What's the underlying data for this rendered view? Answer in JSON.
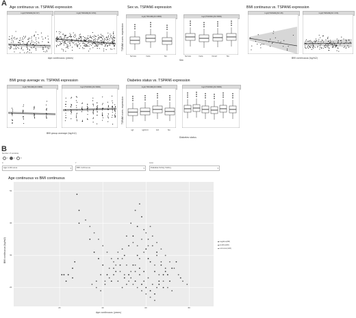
{
  "panelA": {
    "letter": "A",
    "sections": [
      {
        "id": "age",
        "title": "Age continuous vs. TSPAN6 expression",
        "xlabel": "Age continuous (years)",
        "ylabel": "TSPAN6 norm. expression",
        "strips": [
          "log2(TSPAN6)(N=97)",
          "log2(TSPAN6)(N=456)"
        ]
      },
      {
        "id": "sex",
        "title": "Sex vs. TSPAN6 expression",
        "xlabel": "Sex",
        "ylabel": "TSPAN6 norm. expression",
        "strips": [
          "log2(TSPAN6)(N=NNN)",
          "log2(TSPAN6)(N=NNN)"
        ],
        "categories": [
          "female",
          "male",
          "NA"
        ],
        "categories2": [
          "female",
          "male",
          "mixed",
          "NA"
        ]
      },
      {
        "id": "bmi",
        "title": "BMI continuous vs. TSPAN6 expression",
        "xlabel": "BMI continuous (kg/m2)",
        "ylabel": "",
        "strips": [
          "log2(TSPAN6)(N=28)",
          "log2(TSPAN6)(N=136)"
        ]
      },
      {
        "id": "bmig",
        "title": "BMI group average vs. TSPAN6 expression",
        "xlabel": "BMI group average (kg/m2)",
        "ylabel": "",
        "strips": [
          "log2(TSPAN6)(N=NNN)",
          "log2(TSPAN6)(N=NNN)"
        ]
      },
      {
        "id": "diab",
        "title": "Diabetes status vs. TSPAN6 expression",
        "xlabel": "Diabetes status",
        "ylabel": "TSPAN6 norm. expression",
        "strips": [
          "log2(TSPAN6)(N=NNN)",
          "log2(TSPAN6)(N=NNN)"
        ],
        "categories": [
          "ngt",
          "ngt/t2d",
          "t2d",
          "NA"
        ],
        "categories2": [
          "ngt",
          "ngt/t2d",
          "igt",
          "igt or t2d",
          "t2d",
          "NA"
        ]
      }
    ]
  },
  "panelB": {
    "letter": "B",
    "radio_label": "Number of variables",
    "radio_options": [
      "1",
      "2",
      "3"
    ],
    "controls": [
      {
        "label": "X",
        "value": "Age continuous"
      },
      {
        "label": "Y",
        "value": "BMI continuous"
      },
      {
        "label": "Color",
        "value": "Diabetes family history"
      }
    ],
    "plot_title": "Age continuous vs BMI continuous",
    "xlabel": "Age continuous (years)",
    "ylabel": "BMI continuous (kg/m2)",
    "legend": [
      "negative(88)",
      "positive(46)",
      "unknown(128)"
    ]
  },
  "chart_data": [
    {
      "type": "scatter",
      "title": "Age continuous vs BMI continuous",
      "xlabel": "Age continuous (years)",
      "ylabel": "BMI continuous (kg/m2)",
      "xlim": [
        0,
        90
      ],
      "ylim": [
        15,
        52
      ],
      "xticks": [
        20,
        40,
        60,
        80
      ],
      "yticks": [
        20,
        30,
        40,
        50
      ],
      "grid": true,
      "legend_position": "right",
      "series": [
        {
          "name": "negative(88)",
          "points": [
            [
              28,
              49
            ],
            [
              29,
              44
            ],
            [
              29,
              40
            ],
            [
              27,
              28
            ],
            [
              26,
              26
            ],
            [
              24,
              24
            ],
            [
              22,
              24
            ],
            [
              21,
              24
            ],
            [
              26,
              23
            ],
            [
              23,
              22
            ],
            [
              34,
              35
            ],
            [
              36,
              31
            ],
            [
              38,
              29
            ],
            [
              40,
              27
            ],
            [
              42,
              24
            ],
            [
              44,
              22
            ],
            [
              46,
              25
            ],
            [
              48,
              27
            ],
            [
              50,
              30
            ],
            [
              52,
              33
            ],
            [
              54,
              36
            ],
            [
              56,
              39
            ],
            [
              58,
              42
            ],
            [
              60,
              32
            ],
            [
              62,
              28
            ],
            [
              64,
              25
            ],
            [
              66,
              22
            ],
            [
              68,
              20
            ],
            [
              70,
              24
            ],
            [
              72,
              26
            ],
            [
              74,
              28
            ],
            [
              76,
              23
            ],
            [
              50,
              23
            ],
            [
              55,
              22
            ],
            [
              58,
              21
            ],
            [
              60,
              20
            ],
            [
              62,
              19
            ],
            [
              64,
              18
            ],
            [
              66,
              21
            ],
            [
              68,
              24
            ],
            [
              54,
              27
            ],
            [
              56,
              30
            ],
            [
              52,
              24
            ],
            [
              57,
              26
            ],
            [
              61,
              29
            ],
            [
              65,
              31
            ],
            [
              67,
              27
            ],
            [
              69,
              25
            ],
            [
              71,
              22
            ],
            [
              59,
              25
            ]
          ]
        },
        {
          "name": "positive(46)",
          "points": [
            [
              45,
              26
            ],
            [
              47,
              29
            ],
            [
              49,
              32
            ],
            [
              51,
              36
            ],
            [
              53,
              40
            ],
            [
              55,
              44
            ],
            [
              57,
              46
            ],
            [
              59,
              38
            ],
            [
              61,
              35
            ],
            [
              63,
              33
            ],
            [
              65,
              30
            ],
            [
              67,
              28
            ],
            [
              69,
              26
            ],
            [
              57,
              24
            ],
            [
              59,
              22
            ],
            [
              61,
              23
            ],
            [
              63,
              21
            ],
            [
              65,
              20
            ],
            [
              55,
              25
            ],
            [
              53,
              23
            ],
            [
              51,
              21
            ],
            [
              49,
              20
            ],
            [
              47,
              22
            ],
            [
              45,
              24
            ],
            [
              43,
              23
            ],
            [
              41,
              21
            ],
            [
              39,
              24
            ],
            [
              37,
              22
            ]
          ]
        },
        {
          "name": "unknown(128)",
          "points": [
            [
              35,
              21
            ],
            [
              37,
              20
            ],
            [
              39,
              19
            ],
            [
              41,
              22
            ],
            [
              43,
              26
            ],
            [
              45,
              28
            ],
            [
              47,
              31
            ],
            [
              49,
              29
            ],
            [
              51,
              27
            ],
            [
              53,
              25
            ],
            [
              55,
              27
            ],
            [
              57,
              29
            ],
            [
              59,
              31
            ],
            [
              61,
              33
            ],
            [
              63,
              36
            ],
            [
              65,
              34
            ],
            [
              67,
              32
            ],
            [
              69,
              30
            ],
            [
              71,
              28
            ],
            [
              73,
              26
            ],
            [
              75,
              24
            ],
            [
              77,
              22
            ],
            [
              79,
              21
            ],
            [
              58,
              35
            ],
            [
              60,
              37
            ],
            [
              62,
              39
            ],
            [
              54,
              34
            ],
            [
              56,
              33
            ],
            [
              64,
              27
            ],
            [
              66,
              24
            ],
            [
              68,
              22
            ],
            [
              70,
              20
            ],
            [
              72,
              19
            ],
            [
              62,
              17
            ],
            [
              64,
              16
            ],
            [
              60,
              18
            ],
            [
              58,
              19
            ],
            [
              56,
              20
            ],
            [
              54,
              21
            ],
            [
              52,
              22
            ],
            [
              50,
              24
            ],
            [
              48,
              25
            ],
            [
              46,
              27
            ],
            [
              44,
              29
            ],
            [
              42,
              31
            ],
            [
              40,
              33
            ],
            [
              38,
              35
            ],
            [
              36,
              37
            ],
            [
              34,
              39
            ],
            [
              32,
              41
            ]
          ]
        }
      ]
    }
  ]
}
